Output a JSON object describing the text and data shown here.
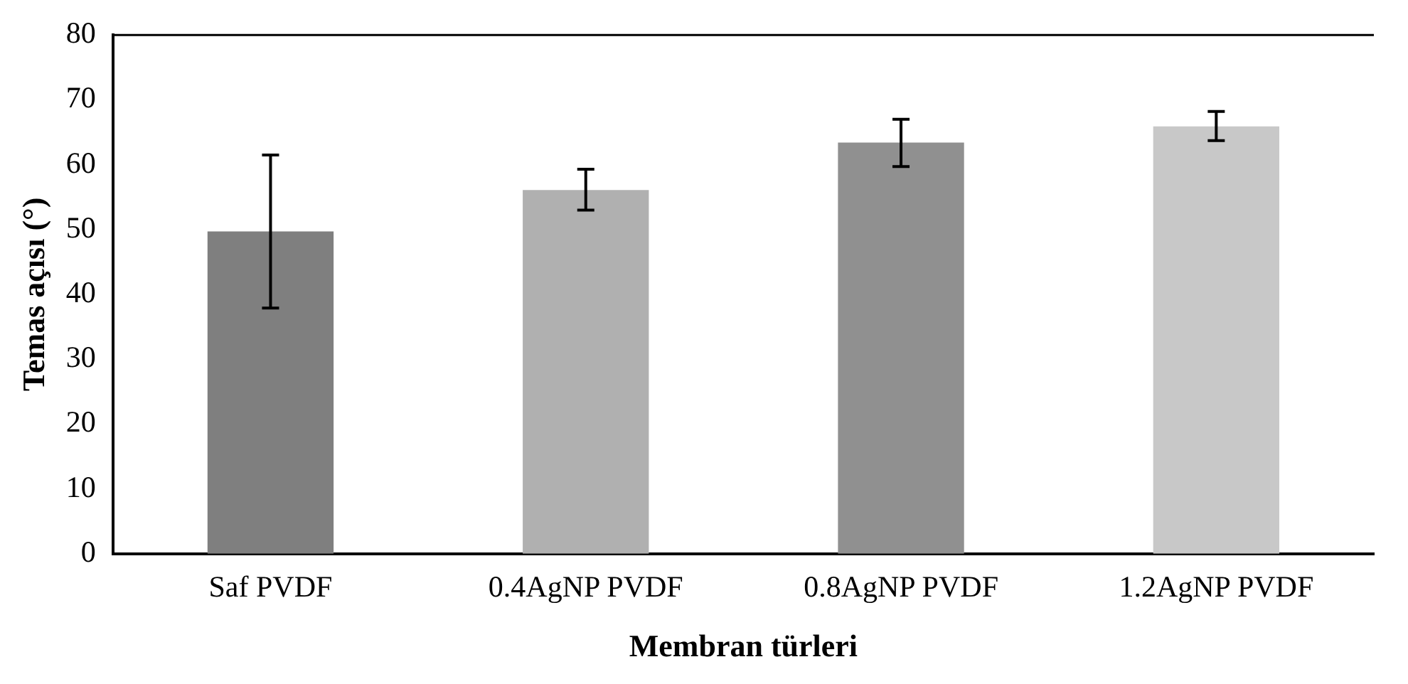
{
  "chart_data": {
    "type": "bar",
    "xlabel": "Membran türleri",
    "ylabel": "Temas açısı (°)",
    "categories": [
      "Saf PVDF",
      "0.4AgNP PVDF",
      "0.8AgNP PVDF",
      "1.2AgNP PVDF"
    ],
    "values": [
      49.7,
      56.1,
      63.4,
      65.9
    ],
    "errors": [
      [
        37.9,
        61.5
      ],
      [
        53.0,
        59.3
      ],
      [
        59.7,
        67.0
      ],
      [
        63.7,
        68.2
      ]
    ],
    "colors": [
      "#7f7f7f",
      "#b0b0b0",
      "#909090",
      "#c8c8c8"
    ],
    "ylim": [
      0,
      80
    ],
    "yticks": [
      0,
      10,
      20,
      30,
      40,
      50,
      60,
      70,
      80
    ],
    "grid": false,
    "legend": false
  }
}
